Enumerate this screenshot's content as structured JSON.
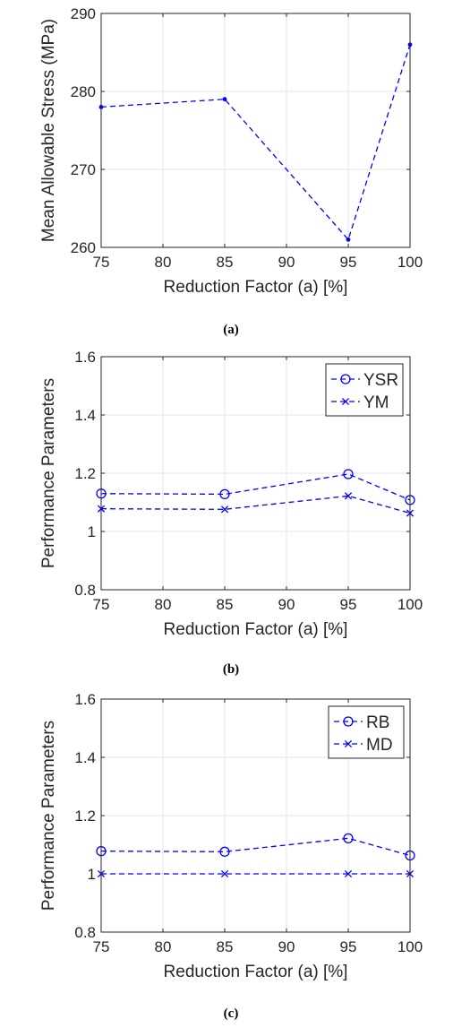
{
  "colors": {
    "series": "#0000ff",
    "grid": "#e6e6e6",
    "axis": "#262626",
    "background": "#ffffff"
  },
  "captions": [
    "(a)",
    "(b)",
    "(c)"
  ],
  "chart_data": [
    {
      "type": "line",
      "x": [
        75,
        85,
        95,
        100
      ],
      "xticks": [
        75,
        80,
        85,
        90,
        95,
        100
      ],
      "yticks": [
        260,
        270,
        280,
        290
      ],
      "xlim": [
        75,
        100
      ],
      "ylim": [
        260,
        290
      ],
      "xlabel": "Reduction Factor (a) [%]",
      "ylabel": "Mean Allowable Stress (MPa)",
      "grid": true,
      "legend": "none",
      "series": [
        {
          "values": [
            278,
            279,
            261,
            286
          ],
          "marker": "dot",
          "line_style": "dashed"
        }
      ]
    },
    {
      "type": "line",
      "x": [
        75,
        85,
        95,
        100
      ],
      "xticks": [
        75,
        80,
        85,
        90,
        95,
        100
      ],
      "yticks": [
        0.8,
        1,
        1.2,
        1.4,
        1.6
      ],
      "ytick_labels": [
        "0.8",
        "1",
        "1.2",
        "1.4",
        "1.6"
      ],
      "xlim": [
        75,
        100
      ],
      "ylim": [
        0.8,
        1.6
      ],
      "xlabel": "Reduction Factor (a) [%]",
      "ylabel": "Performance Parameters",
      "grid": true,
      "legend": "top-right",
      "series": [
        {
          "name": "YSR",
          "values": [
            1.13,
            1.128,
            1.197,
            1.108
          ],
          "marker": "circle",
          "line_style": "dashed"
        },
        {
          "name": "YM",
          "values": [
            1.078,
            1.076,
            1.122,
            1.063
          ],
          "marker": "x",
          "line_style": "dashed"
        }
      ]
    },
    {
      "type": "line",
      "x": [
        75,
        85,
        95,
        100
      ],
      "xticks": [
        75,
        80,
        85,
        90,
        95,
        100
      ],
      "yticks": [
        0.8,
        1,
        1.2,
        1.4,
        1.6
      ],
      "ytick_labels": [
        "0.8",
        "1",
        "1.2",
        "1.4",
        "1.6"
      ],
      "xlim": [
        75,
        100
      ],
      "ylim": [
        0.8,
        1.6
      ],
      "xlabel": "Reduction Factor (a) [%]",
      "ylabel": "Performance Parameters",
      "grid": true,
      "legend": "top-right",
      "series": [
        {
          "name": "RB",
          "values": [
            1.078,
            1.076,
            1.122,
            1.063
          ],
          "marker": "circle",
          "line_style": "dashed"
        },
        {
          "name": "MD",
          "values": [
            1.0,
            1.0,
            1.0,
            1.0
          ],
          "marker": "x",
          "line_style": "dashed"
        }
      ]
    }
  ]
}
